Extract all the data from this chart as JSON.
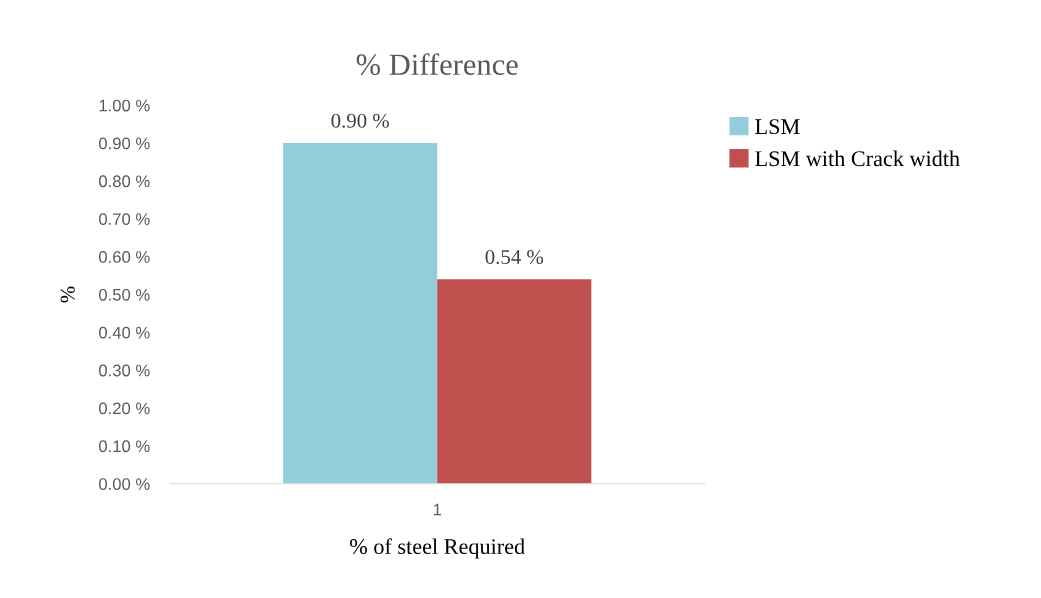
{
  "chart_data": {
    "type": "bar",
    "title": "% Difference",
    "xlabel": "% of steel Required",
    "ylabel": "%",
    "categories": [
      "1"
    ],
    "series": [
      {
        "name": "LSM",
        "color": "#92cddc",
        "values": [
          0.9
        ],
        "value_labels": [
          "0.90 %"
        ]
      },
      {
        "name": "LSM with Crack width",
        "color": "#c0504d",
        "values": [
          0.54
        ],
        "value_labels": [
          "0.54 %"
        ]
      }
    ],
    "ylim": [
      0,
      1.0
    ],
    "yticks": [
      {
        "value": 0,
        "label": "0.00 %"
      },
      {
        "value": 0.1,
        "label": "0.10 %"
      },
      {
        "value": 0.2,
        "label": "0.20 %"
      },
      {
        "value": 0.3,
        "label": "0.30 %"
      },
      {
        "value": 0.4,
        "label": "0.40 %"
      },
      {
        "value": 0.5,
        "label": "0.50 %"
      },
      {
        "value": 0.6,
        "label": "0.60 %"
      },
      {
        "value": 0.7,
        "label": "0.70 %"
      },
      {
        "value": 0.8,
        "label": "0.80 %"
      },
      {
        "value": 0.9,
        "label": "0.90 %"
      },
      {
        "value": 1.0,
        "label": "1.00 %"
      }
    ],
    "grid": false,
    "legend": "right"
  }
}
